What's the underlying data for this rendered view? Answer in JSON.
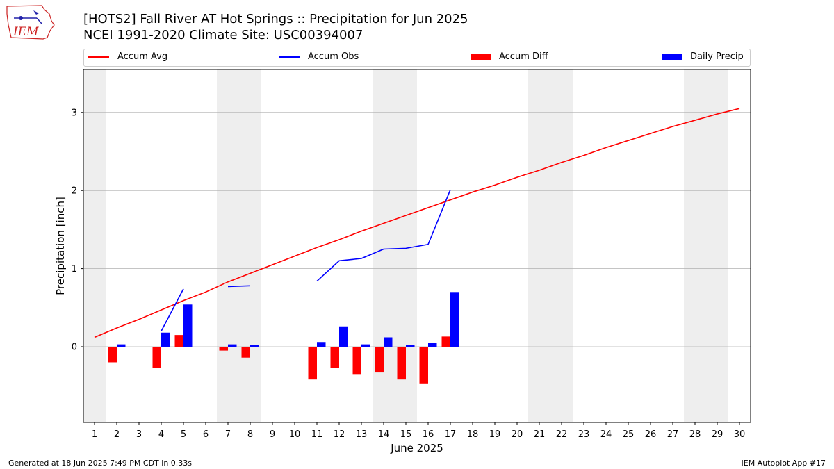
{
  "header": {
    "title_line1": "[HOTS2] Fall River  AT Hot Springs :: Precipitation for Jun 2025",
    "title_line2": "NCEI 1991-2020 Climate Site: USC00394007",
    "logo_text": "IEM"
  },
  "legend": {
    "accum_avg": "Accum Avg",
    "accum_obs": "Accum Obs",
    "accum_diff": "Accum Diff",
    "daily_precip": "Daily Precip"
  },
  "footer": {
    "generated": "Generated at 18 Jun 2025 7:49 PM CDT in 0.33s",
    "app": "IEM Autoplot App #17"
  },
  "colors": {
    "avg": "#ff0000",
    "obs": "#0000ff",
    "diff": "#ff0000",
    "daily": "#0000ff",
    "weekend": "#eeeeee",
    "grid": "#b0b0b0"
  },
  "chart_data": {
    "type": "bar",
    "title": "[HOTS2] Fall River  AT Hot Springs :: Precipitation for Jun 2025",
    "xlabel": "June 2025",
    "ylabel": "Precipitation [inch]",
    "xlim": [
      0.5,
      30.5
    ],
    "ylim": [
      -0.97,
      3.55
    ],
    "yticks": [
      0,
      1,
      2,
      3
    ],
    "days": [
      1,
      2,
      3,
      4,
      5,
      6,
      7,
      8,
      9,
      10,
      11,
      12,
      13,
      14,
      15,
      16,
      17,
      18,
      19,
      20,
      21,
      22,
      23,
      24,
      25,
      26,
      27,
      28,
      29,
      30
    ],
    "weekend_spans": [
      [
        0.5,
        1.5
      ],
      [
        6.5,
        8.5
      ],
      [
        13.5,
        15.5
      ],
      [
        20.5,
        22.5
      ],
      [
        27.5,
        29.5
      ]
    ],
    "series": [
      {
        "name": "Accum Avg",
        "kind": "line",
        "x": [
          1,
          2,
          3,
          4,
          5,
          6,
          7,
          8,
          9,
          10,
          11,
          12,
          13,
          14,
          15,
          16,
          17,
          18,
          19,
          20,
          21,
          22,
          23,
          24,
          25,
          26,
          27,
          28,
          29,
          30
        ],
        "values": [
          0.12,
          0.24,
          0.35,
          0.47,
          0.59,
          0.7,
          0.83,
          0.94,
          1.05,
          1.16,
          1.27,
          1.37,
          1.48,
          1.58,
          1.68,
          1.78,
          1.88,
          1.98,
          2.07,
          2.17,
          2.26,
          2.36,
          2.45,
          2.55,
          2.64,
          2.73,
          2.82,
          2.9,
          2.98,
          3.05
        ]
      },
      {
        "name": "Accum Obs",
        "kind": "line",
        "x": [
          1,
          2,
          3,
          4,
          5,
          6,
          7,
          8,
          9,
          10,
          11,
          12,
          13,
          14,
          15,
          16,
          17
        ],
        "values": [
          null,
          null,
          null,
          0.2,
          0.74,
          null,
          0.77,
          0.78,
          null,
          null,
          0.84,
          1.1,
          1.13,
          1.25,
          1.26,
          1.31,
          2.01
        ]
      },
      {
        "name": "Accum Diff",
        "kind": "bar",
        "x": [
          2,
          4,
          5,
          7,
          8,
          11,
          12,
          13,
          14,
          15,
          16,
          17
        ],
        "values": [
          -0.2,
          -0.27,
          0.15,
          -0.05,
          -0.14,
          -0.42,
          -0.27,
          -0.35,
          -0.33,
          -0.42,
          -0.47,
          0.13
        ]
      },
      {
        "name": "Daily Precip",
        "kind": "bar",
        "x": [
          2,
          4,
          5,
          7,
          8,
          11,
          12,
          13,
          14,
          15,
          16,
          17
        ],
        "values": [
          0.03,
          0.18,
          0.54,
          0.03,
          0.02,
          0.06,
          0.26,
          0.03,
          0.12,
          0.02,
          0.05,
          0.7
        ]
      }
    ]
  }
}
